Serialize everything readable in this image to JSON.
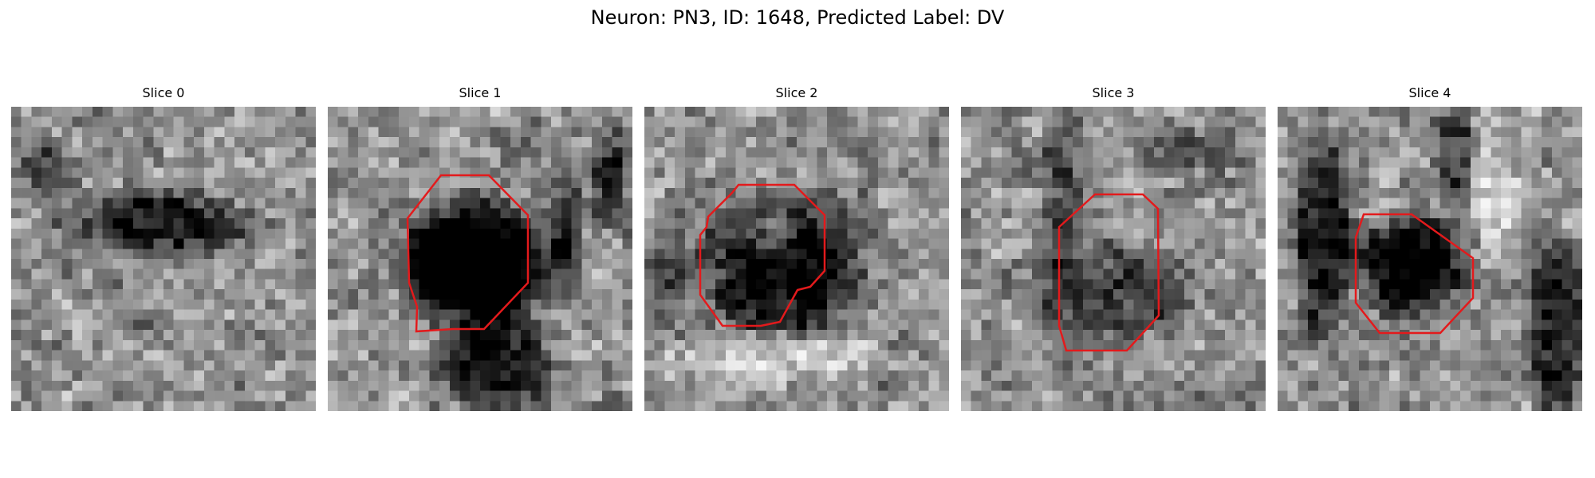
{
  "figure": {
    "suptitle": "Neuron: PN3, ID: 1648, Predicted Label: DV"
  },
  "colors": {
    "contour": "#e31a1c",
    "background": "#ffffff",
    "colormap": "gray"
  },
  "slices": [
    {
      "title": "Slice 0",
      "has_contour": false,
      "dark_blob": "elongated dark band across middle-left"
    },
    {
      "title": "Slice 1",
      "has_contour": true,
      "dark_blob": "large solid black cell body with dark process downward"
    },
    {
      "title": "Slice 2",
      "has_contour": true,
      "dark_blob": "dark ring with brighter nucleus"
    },
    {
      "title": "Slice 3",
      "has_contour": true,
      "dark_blob": "mid-grey cell, darker lower half"
    },
    {
      "title": "Slice 4",
      "has_contour": true,
      "dark_blob": "small dark cell, dark vertical processes on sides"
    }
  ]
}
